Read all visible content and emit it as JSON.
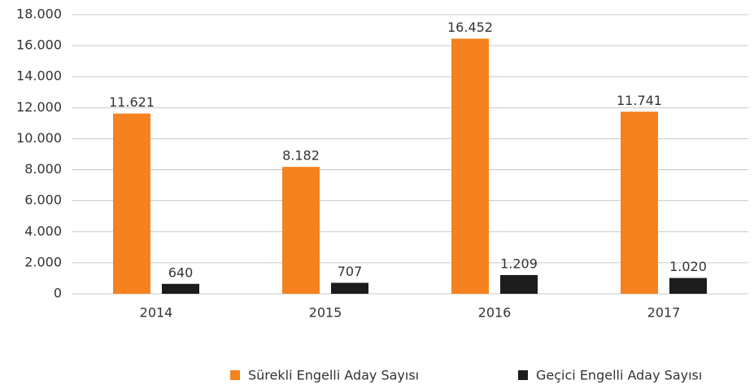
{
  "chart_data": {
    "type": "bar",
    "categories": [
      "2014",
      "2015",
      "2016",
      "2017"
    ],
    "series": [
      {
        "name": "Sürekli Engelli Aday Sayısı",
        "color": "#f5821f",
        "values": [
          11621,
          8182,
          16452,
          11741
        ],
        "value_labels": [
          "11.621",
          "8.182",
          "16.452",
          "11.741"
        ]
      },
      {
        "name": "Geçici Engelli Aday Sayısı",
        "color": "#1c1c1c",
        "values": [
          640,
          707,
          1209,
          1020
        ],
        "value_labels": [
          "640",
          "707",
          "1.209",
          "1.020"
        ]
      }
    ],
    "ylim": [
      0,
      18000
    ],
    "yticks": [
      0,
      {
        "value": 2000,
        "label": "2.000"
      },
      {
        "value": 4000,
        "label": "4.000"
      },
      {
        "value": 6000,
        "label": "6.000"
      },
      {
        "value": 8000,
        "label": "8.000"
      },
      {
        "value": 10000,
        "label": "10.000"
      },
      {
        "value": 12000,
        "label": "12.000"
      },
      {
        "value": 14000,
        "label": "14.000"
      },
      {
        "value": 16000,
        "label": "16.000"
      },
      {
        "value": 18000,
        "label": "18.000"
      }
    ],
    "grid": true,
    "legend": "bottom"
  }
}
